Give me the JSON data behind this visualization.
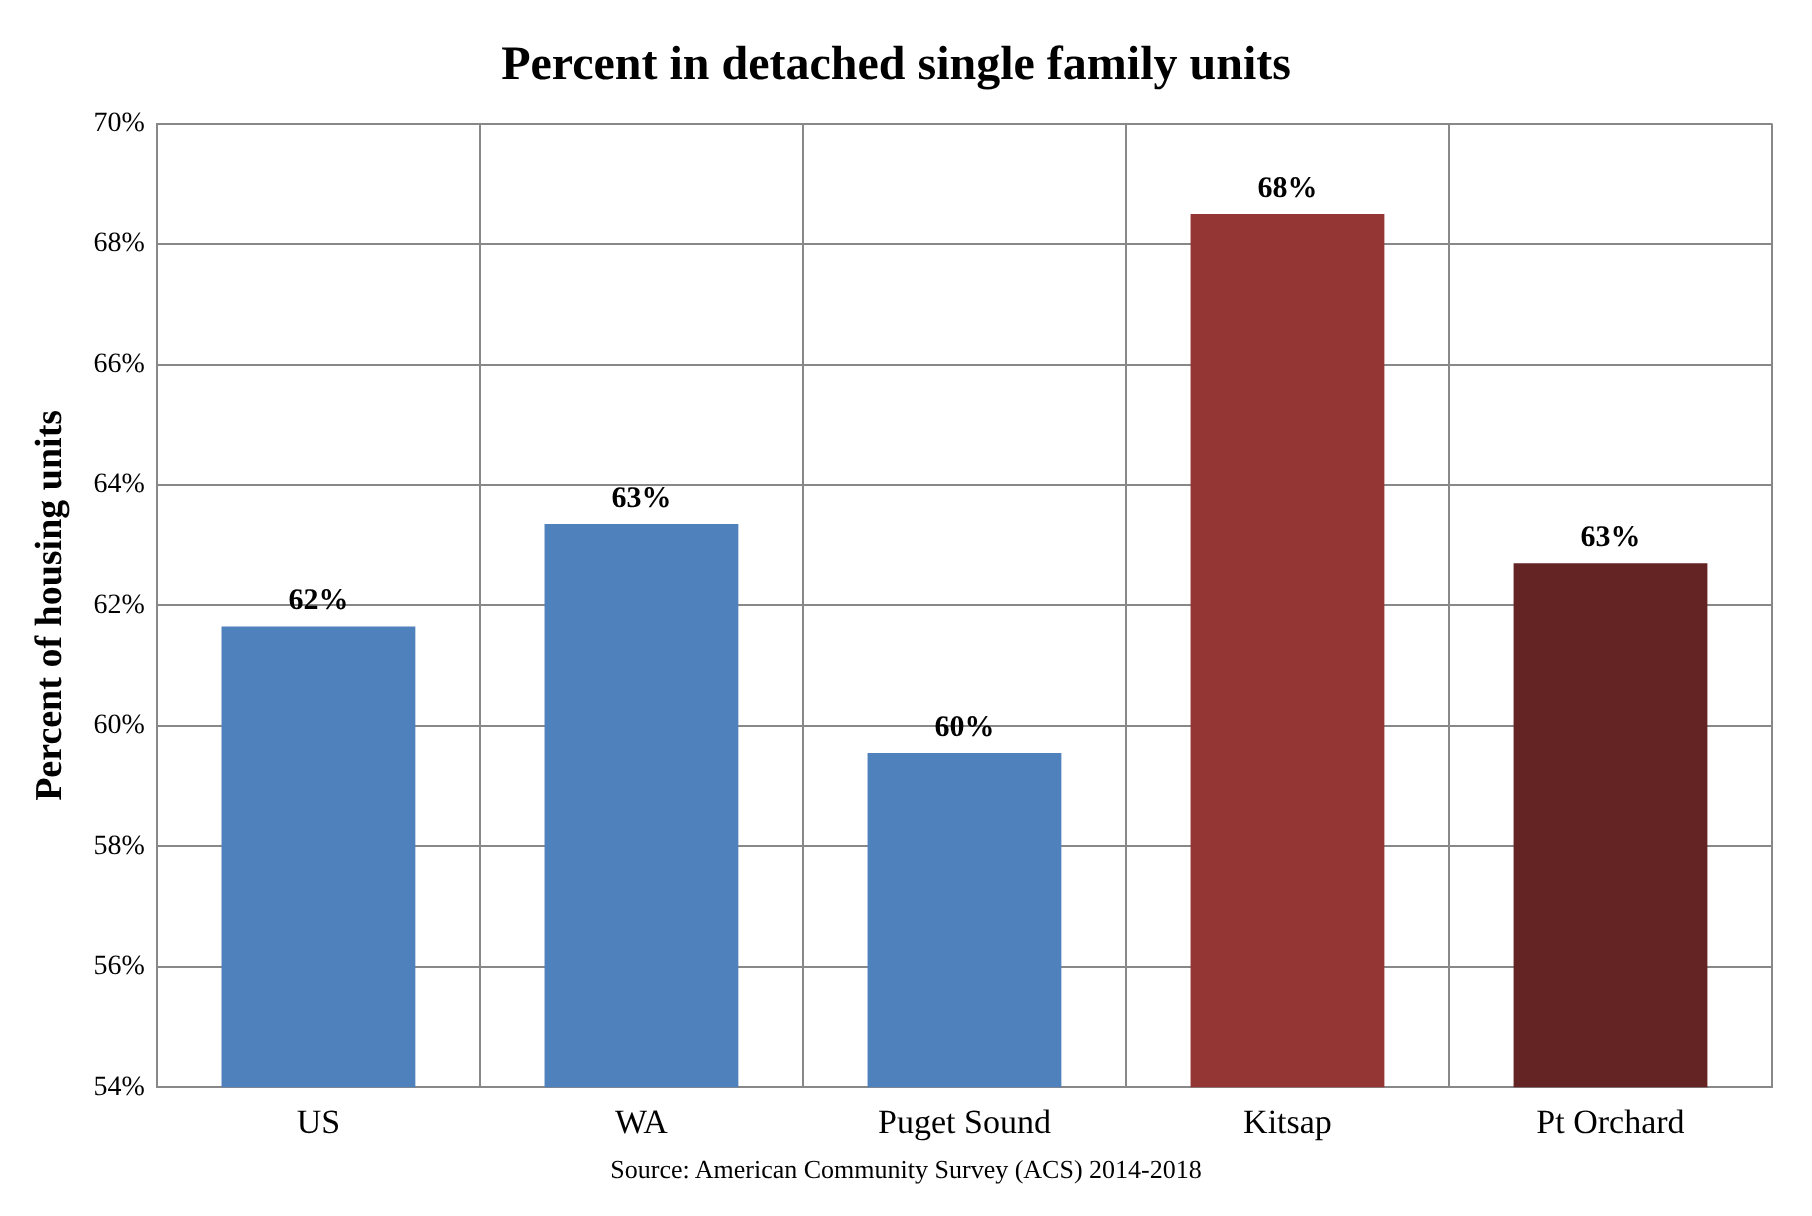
{
  "chart_data": {
    "type": "bar",
    "title": "Percent in detached single family units",
    "ylabel": "Percent of housing units",
    "categories": [
      "US",
      "WA",
      "Puget Sound",
      "Kitsap",
      "Pt Orchard"
    ],
    "values": [
      61.65,
      63.35,
      59.55,
      68.5,
      62.7
    ],
    "colors": [
      "#4f81bd",
      "#4f81bd",
      "#4f81bd",
      "#943634",
      "#632423"
    ],
    "value_labels": [
      "62%",
      "63%",
      "60%",
      "68%",
      "63%"
    ],
    "ylim": [
      54,
      70
    ],
    "yticks": [
      {
        "value": 54,
        "label": "54%"
      },
      {
        "value": 56,
        "label": "56%"
      },
      {
        "value": 58,
        "label": "58%"
      },
      {
        "value": 60,
        "label": "60%"
      },
      {
        "value": 62,
        "label": "62%"
      },
      {
        "value": 64,
        "label": "64%"
      },
      {
        "value": 66,
        "label": "66%"
      },
      {
        "value": 68,
        "label": "68%"
      },
      {
        "value": 70,
        "label": "70%"
      }
    ],
    "grid": true,
    "annotations": [
      "Source: American Community Survey (ACS) 2014-2018"
    ]
  }
}
